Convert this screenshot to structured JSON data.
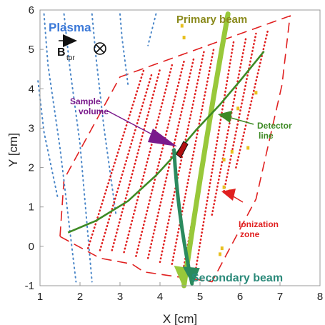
{
  "chart_data": {
    "type": "scatter",
    "xlabel": "X [cm]",
    "ylabel": "Y [cm]",
    "xlim": [
      1,
      8
    ],
    "ylim": [
      -1,
      6
    ],
    "x_ticks": [
      "1",
      "2",
      "3",
      "4",
      "5",
      "6",
      "7",
      "8"
    ],
    "y_ticks": [
      "-1",
      "0",
      "1",
      "2",
      "3",
      "4",
      "5",
      "6"
    ],
    "grid": false,
    "colors": {
      "field_lines": "#4a86c8",
      "ionization": "#e02020",
      "markers": "#e8c020",
      "primary_beam": "#98c83a",
      "detector_line": "#3d8a24",
      "secondary_beam": "#2b8a5e",
      "sample_volume": "#7a1a8c",
      "zone_outline": "#e02020"
    },
    "primary_beam": {
      "x": [
        4.6,
        5.1,
        5.7
      ],
      "y": [
        -1.0,
        2.5,
        5.9
      ]
    },
    "detector_line": {
      "x": [
        1.7,
        2.4,
        3.2,
        3.9,
        4.4,
        4.9,
        5.5,
        6.0,
        6.6
      ],
      "y": [
        0.35,
        0.65,
        1.15,
        1.8,
        2.35,
        2.95,
        3.6,
        4.2,
        4.95
      ]
    },
    "secondary_beam": {
      "x": [
        4.35,
        4.45,
        4.8
      ],
      "y": [
        2.45,
        0.7,
        -0.95
      ]
    },
    "ionization_zone": {
      "x": [
        1.5,
        1.6,
        3.0,
        7.25,
        7.05,
        6.4,
        5.3,
        3.6,
        3.3,
        2.5
      ],
      "y": [
        0.25,
        1.7,
        4.3,
        5.85,
        4.1,
        1.2,
        -0.9,
        -0.65,
        -0.45,
        -0.3
      ]
    },
    "ionization_traces": [
      {
        "x": [
          2.2,
          3.6
        ],
        "y": [
          -0.05,
          4.5
        ]
      },
      {
        "x": [
          2.5,
          3.8
        ],
        "y": [
          -0.1,
          4.4
        ]
      },
      {
        "x": [
          2.8,
          4.0
        ],
        "y": [
          -0.1,
          4.5
        ]
      },
      {
        "x": [
          3.1,
          4.3
        ],
        "y": [
          -0.15,
          4.6
        ]
      },
      {
        "x": [
          3.4,
          4.6
        ],
        "y": [
          -0.25,
          4.7
        ]
      },
      {
        "x": [
          3.7,
          4.85
        ],
        "y": [
          -0.3,
          4.8
        ]
      },
      {
        "x": [
          4.0,
          5.1
        ],
        "y": [
          -0.4,
          4.95
        ]
      },
      {
        "x": [
          4.3,
          5.35
        ],
        "y": [
          -0.45,
          5.05
        ]
      },
      {
        "x": [
          4.6,
          5.6
        ],
        "y": [
          -0.5,
          5.15
        ]
      },
      {
        "x": [
          4.9,
          5.85
        ],
        "y": [
          -0.55,
          5.25
        ]
      },
      {
        "x": [
          5.3,
          6.15
        ],
        "y": [
          0.8,
          5.3
        ]
      },
      {
        "x": [
          5.6,
          6.4
        ],
        "y": [
          1.4,
          5.4
        ]
      },
      {
        "x": [
          5.9,
          6.7
        ],
        "y": [
          2.0,
          5.5
        ]
      }
    ],
    "field_lines": [
      {
        "x": [
          1.1,
          1.2,
          1.5,
          1.9
        ],
        "y": [
          5.9,
          4.6,
          2.5,
          -0.9
        ]
      },
      {
        "x": [
          1.6,
          1.75,
          2.0,
          2.3
        ],
        "y": [
          5.9,
          4.5,
          2.6,
          -0.9
        ]
      },
      {
        "x": [
          2.3,
          2.4,
          2.6,
          2.9
        ],
        "y": [
          5.9,
          4.8,
          3.0,
          0.8
        ]
      },
      {
        "x": [
          3.0,
          3.05,
          3.2
        ],
        "y": [
          5.9,
          5.3,
          4.1
        ]
      },
      {
        "x": [
          3.9,
          3.7
        ],
        "y": [
          5.9,
          5.1
        ]
      },
      {
        "x": [
          0.95,
          1.1,
          1.45
        ],
        "y": [
          4.2,
          2.9,
          1.2
        ]
      }
    ],
    "marker_points": {
      "x": [
        4.55,
        4.6,
        5.6,
        5.75,
        5.8,
        5.55,
        5.5,
        5.6,
        5.95,
        6.2,
        6.4
      ],
      "y": [
        5.6,
        5.3,
        1.5,
        1.4,
        2.4,
        -0.05,
        -0.2,
        2.2,
        3.5,
        2.5,
        3.9
      ]
    },
    "annotations": {
      "plasma": "Plasma",
      "b_symbol": "B",
      "b_subscript": "tor",
      "primary_beam": "Primary beam",
      "sample_volume_line1": "Sample",
      "sample_volume_line2": "volume",
      "detector_line_line1": "Detector",
      "detector_line_line2": "line",
      "ionization_zone_line1": "Ionization",
      "ionization_zone_line2": "zone",
      "secondary_beam": "Secondary beam"
    }
  }
}
